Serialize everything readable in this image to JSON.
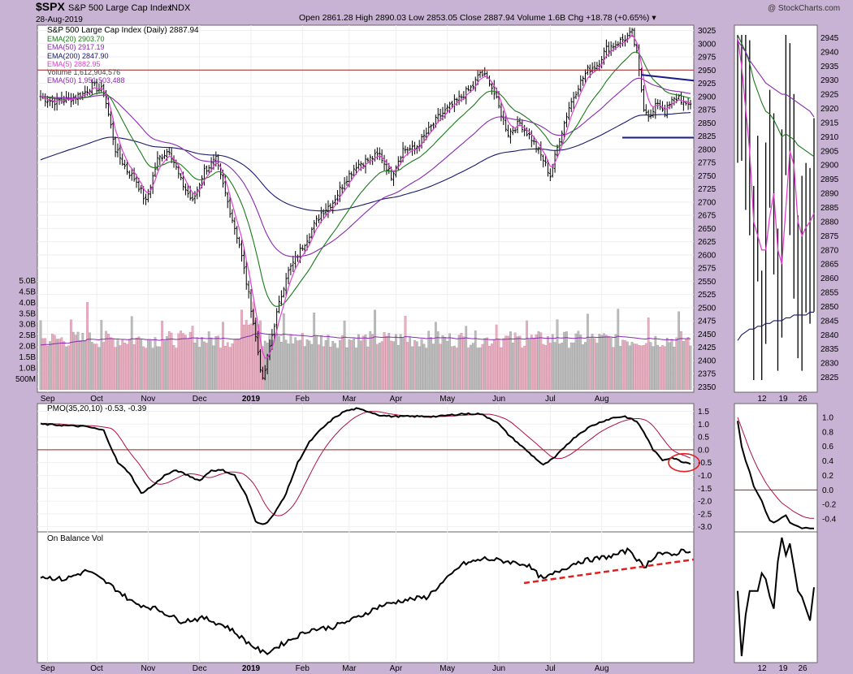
{
  "header": {
    "symbol": "$SPX",
    "name": "S&P 500 Large Cap Index",
    "exchange": "INDX",
    "date": "28-Aug-2019",
    "quote": "Open 2861.28  High 2890.03  Low 2853.05  Close 2887.94  Volume 1.6B  Chg +18.78 (+0.65%) ▾",
    "watermark": "@ StockCharts.com"
  },
  "chart_data": [
    {
      "type": "candlestick",
      "title": "S&P 500 Large Cap Index (Daily) 2887.94",
      "legend": [
        {
          "label": "EMA(20) 2903.70",
          "color": "#1a7a1a"
        },
        {
          "label": "EMA(50) 2917.19",
          "color": "#8a2ab0"
        },
        {
          "label": "EMA(200) 2847.90",
          "color": "#1a1a6a"
        },
        {
          "label": "EMA(5) 2882.95",
          "color": "#e040d0"
        },
        {
          "label": "Volume 1,612,904,576",
          "color": "#444444"
        },
        {
          "label": "EMA(50) 1,951,503,488",
          "color": "#8a2ab0"
        }
      ],
      "x_labels": [
        "Sep",
        "Oct",
        "Nov",
        "Dec",
        "2019",
        "Feb",
        "Mar",
        "Apr",
        "May",
        "Jun",
        "Jul",
        "Aug"
      ],
      "y_ticks": [
        2350,
        2375,
        2400,
        2425,
        2450,
        2475,
        2500,
        2525,
        2550,
        2575,
        2600,
        2625,
        2650,
        2675,
        2700,
        2725,
        2750,
        2775,
        2800,
        2825,
        2850,
        2875,
        2900,
        2925,
        2950,
        2975,
        3000,
        3025
      ],
      "ylim": [
        2340,
        3035
      ],
      "volume_ticks": [
        "500M",
        "1.0B",
        "1.5B",
        "2.0B",
        "2.5B",
        "3.0B",
        "3.5B",
        "4.0B",
        "4.5B",
        "5.0B"
      ],
      "volume_ylim": [
        0,
        5.2
      ],
      "resistance_level": 2950,
      "anchors": [
        [
          0,
          2900
        ],
        [
          5,
          2890
        ],
        [
          12,
          2895
        ],
        [
          18,
          2905
        ],
        [
          22,
          2920
        ],
        [
          27,
          2910
        ],
        [
          32,
          2800
        ],
        [
          37,
          2760
        ],
        [
          41,
          2740
        ],
        [
          45,
          2700
        ],
        [
          50,
          2780
        ],
        [
          55,
          2800
        ],
        [
          60,
          2740
        ],
        [
          65,
          2700
        ],
        [
          70,
          2760
        ],
        [
          75,
          2780
        ],
        [
          80,
          2700
        ],
        [
          85,
          2620
        ],
        [
          90,
          2500
        ],
        [
          95,
          2360
        ],
        [
          100,
          2470
        ],
        [
          105,
          2560
        ],
        [
          110,
          2600
        ],
        [
          115,
          2640
        ],
        [
          120,
          2680
        ],
        [
          125,
          2700
        ],
        [
          130,
          2740
        ],
        [
          135,
          2770
        ],
        [
          140,
          2780
        ],
        [
          145,
          2790
        ],
        [
          150,
          2750
        ],
        [
          155,
          2800
        ],
        [
          160,
          2800
        ],
        [
          165,
          2830
        ],
        [
          170,
          2860
        ],
        [
          175,
          2880
        ],
        [
          180,
          2900
        ],
        [
          185,
          2920
        ],
        [
          188,
          2945
        ],
        [
          192,
          2930
        ],
        [
          196,
          2880
        ],
        [
          200,
          2830
        ],
        [
          205,
          2850
        ],
        [
          210,
          2820
        ],
        [
          215,
          2780
        ],
        [
          218,
          2750
        ],
        [
          222,
          2820
        ],
        [
          226,
          2880
        ],
        [
          230,
          2920
        ],
        [
          234,
          2950
        ],
        [
          238,
          2960
        ],
        [
          242,
          2990
        ],
        [
          246,
          3000
        ],
        [
          250,
          3010
        ],
        [
          253,
          3020
        ],
        [
          255,
          2980
        ],
        [
          258,
          2880
        ],
        [
          261,
          2860
        ],
        [
          264,
          2890
        ],
        [
          267,
          2870
        ],
        [
          270,
          2890
        ],
        [
          273,
          2900
        ],
        [
          276,
          2880
        ],
        [
          278,
          2888
        ]
      ]
    },
    {
      "type": "line",
      "title": "PMO(35,20,10) -0.53, -0.39",
      "y_ticks": [
        1.5,
        1.0,
        0.5,
        0.0,
        -0.5,
        -1.0,
        -1.5,
        -2.0,
        -2.5,
        -3.0
      ],
      "ylim": [
        -3.2,
        1.8
      ],
      "anchors": [
        [
          0,
          1.0
        ],
        [
          10,
          0.95
        ],
        [
          20,
          0.9
        ],
        [
          27,
          0.75
        ],
        [
          33,
          -0.5
        ],
        [
          38,
          -0.9
        ],
        [
          43,
          -1.7
        ],
        [
          48,
          -1.4
        ],
        [
          53,
          -1.0
        ],
        [
          58,
          -0.8
        ],
        [
          63,
          -1.0
        ],
        [
          68,
          -1.2
        ],
        [
          73,
          -0.8
        ],
        [
          78,
          -0.8
        ],
        [
          83,
          -1.0
        ],
        [
          88,
          -1.8
        ],
        [
          92,
          -2.8
        ],
        [
          96,
          -2.9
        ],
        [
          100,
          -2.5
        ],
        [
          105,
          -1.7
        ],
        [
          110,
          -0.5
        ],
        [
          115,
          0.3
        ],
        [
          120,
          0.8
        ],
        [
          125,
          1.2
        ],
        [
          130,
          1.5
        ],
        [
          135,
          1.6
        ],
        [
          140,
          1.5
        ],
        [
          145,
          1.35
        ],
        [
          150,
          1.3
        ],
        [
          160,
          1.3
        ],
        [
          170,
          1.3
        ],
        [
          180,
          1.4
        ],
        [
          188,
          1.4
        ],
        [
          195,
          1.1
        ],
        [
          200,
          0.6
        ],
        [
          205,
          0.2
        ],
        [
          210,
          -0.2
        ],
        [
          215,
          -0.6
        ],
        [
          220,
          -0.3
        ],
        [
          225,
          0.2
        ],
        [
          230,
          0.6
        ],
        [
          235,
          0.9
        ],
        [
          240,
          1.1
        ],
        [
          245,
          1.25
        ],
        [
          250,
          1.3
        ],
        [
          255,
          1.1
        ],
        [
          258,
          0.7
        ],
        [
          262,
          0.0
        ],
        [
          266,
          -0.4
        ],
        [
          270,
          -0.3
        ],
        [
          274,
          -0.45
        ],
        [
          278,
          -0.53
        ]
      ]
    },
    {
      "type": "line",
      "title": "On Balance Vol",
      "ylim": [
        -1.1,
        1.1
      ],
      "anchors": [
        [
          0,
          0.35
        ],
        [
          10,
          0.3
        ],
        [
          20,
          0.45
        ],
        [
          30,
          0.2
        ],
        [
          40,
          -0.1
        ],
        [
          50,
          -0.2
        ],
        [
          60,
          -0.4
        ],
        [
          70,
          -0.35
        ],
        [
          80,
          -0.5
        ],
        [
          90,
          -0.8
        ],
        [
          96,
          -0.95
        ],
        [
          105,
          -0.75
        ],
        [
          115,
          -0.55
        ],
        [
          125,
          -0.5
        ],
        [
          135,
          -0.35
        ],
        [
          145,
          -0.15
        ],
        [
          155,
          -0.05
        ],
        [
          165,
          0.0
        ],
        [
          175,
          0.35
        ],
        [
          180,
          0.55
        ],
        [
          190,
          0.65
        ],
        [
          200,
          0.6
        ],
        [
          208,
          0.55
        ],
        [
          215,
          0.3
        ],
        [
          222,
          0.45
        ],
        [
          230,
          0.6
        ],
        [
          238,
          0.65
        ],
        [
          245,
          0.7
        ],
        [
          252,
          0.8
        ],
        [
          258,
          0.5
        ],
        [
          264,
          0.75
        ],
        [
          270,
          0.7
        ],
        [
          275,
          0.8
        ],
        [
          278,
          0.77
        ]
      ]
    }
  ],
  "x_labels_bottom": [
    "Sep",
    "Oct",
    "Nov",
    "Dec",
    "2019",
    "Feb",
    "Mar",
    "Apr",
    "May",
    "Jun",
    "Jul",
    "Aug"
  ],
  "side_labels": [
    "12",
    "19",
    "26"
  ],
  "side_price_ticks": [
    2825,
    2830,
    2835,
    2840,
    2845,
    2850,
    2855,
    2860,
    2865,
    2870,
    2875,
    2880,
    2885,
    2890,
    2895,
    2900,
    2905,
    2910,
    2915,
    2920,
    2925,
    2930,
    2935,
    2940,
    2945
  ],
  "side_pmo_ticks": [
    1.0,
    0.8,
    0.6,
    0.4,
    0.2,
    0.0,
    -0.2,
    -0.4
  ],
  "colors": {
    "ema20": "#1a7a1a",
    "ema50": "#8a2ab0",
    "ema200": "#1a1a6a",
    "ema5": "#e040d0",
    "pmo_signal": "#b01040",
    "obv_trend": "#e02020",
    "highlight": "#e02020",
    "triangle": "#1a1a8a"
  }
}
